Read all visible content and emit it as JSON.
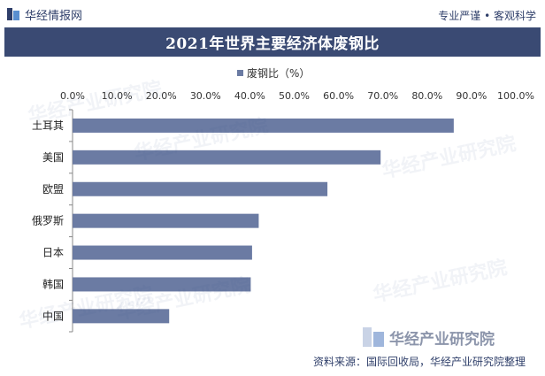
{
  "header": {
    "brand": "华经情报网",
    "tagline": "专业严谨 • 客观科学"
  },
  "footer": {
    "brand": "华经产业研究院",
    "source": "资料来源：国际回收局，华经产业研究院整理"
  },
  "watermark": "华经产业研究院",
  "colors": {
    "bar": "#6b7ba3",
    "title_bg": "#3a4a73",
    "text": "#333333"
  },
  "chart_data": {
    "type": "bar",
    "orientation": "horizontal",
    "title": "2021年世界主要经济体废钢比",
    "categories": [
      "土耳其",
      "美国",
      "欧盟",
      "俄罗斯",
      "日本",
      "韩国",
      "中国"
    ],
    "series": [
      {
        "name": "废钢比（%）",
        "values": [
          86.0,
          69.5,
          57.5,
          42.0,
          40.5,
          40.2,
          21.8
        ]
      }
    ],
    "xlim": [
      0,
      100
    ],
    "x_ticks": [
      "0.0%",
      "10.0%",
      "20.0%",
      "30.0%",
      "40.0%",
      "50.0%",
      "60.0%",
      "70.0%",
      "80.0%",
      "90.0%",
      "100.0%"
    ],
    "x_axis_position": "top",
    "grid": false,
    "legend_position": "top-center"
  }
}
